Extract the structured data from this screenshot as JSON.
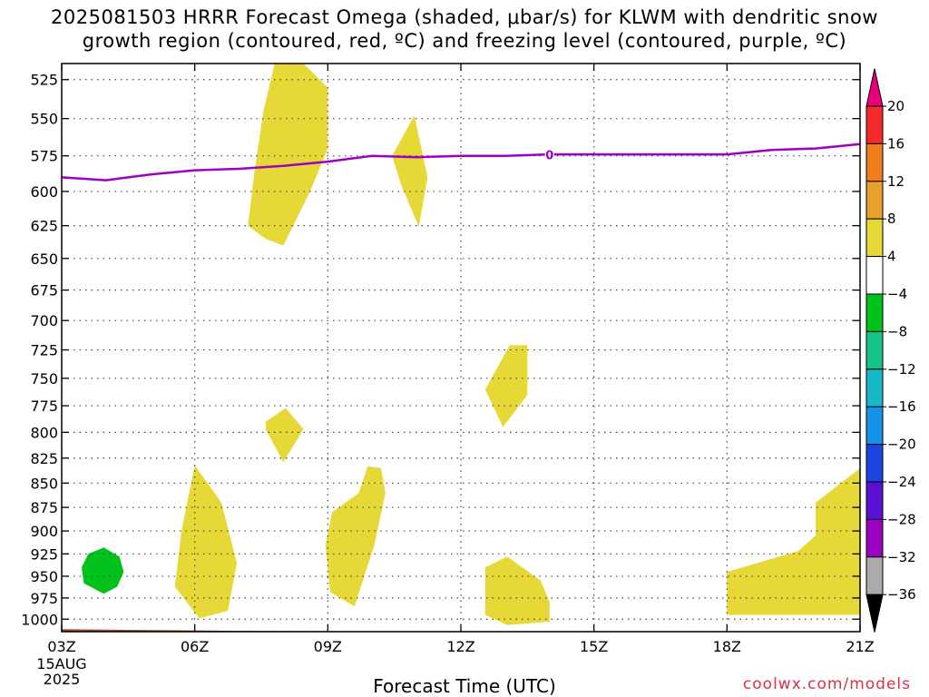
{
  "title_lines": [
    "2025081503 HRRR Forecast Omega (shaded, μbar/s) for KLWM with dendritic snow",
    "growth region (contoured, red, ºC) and freezing level (contoured, purple, ºC)"
  ],
  "xlabel": "Forecast Time (UTC)",
  "credit": "coolwx.com/models",
  "chart_data": {
    "type": "contour",
    "x_ticks": [
      "03Z",
      "06Z",
      "09Z",
      "12Z",
      "15Z",
      "18Z",
      "21Z"
    ],
    "x_start_lines": [
      "15AUG",
      "2025"
    ],
    "x_range_hours": [
      3,
      21
    ],
    "y_ticks": [
      525,
      550,
      575,
      600,
      625,
      650,
      675,
      700,
      725,
      750,
      775,
      800,
      825,
      850,
      875,
      900,
      925,
      950,
      975,
      1000
    ],
    "ylim": [
      1015,
      515
    ],
    "y_scale": "log",
    "grid": true,
    "freezing_level": {
      "color": "#9c00c0",
      "label": "0",
      "label_at": [
        14.0,
        575
      ],
      "points": [
        [
          3.0,
          590
        ],
        [
          4.0,
          592
        ],
        [
          5.0,
          588
        ],
        [
          6.0,
          585
        ],
        [
          7.0,
          584
        ],
        [
          8.0,
          582
        ],
        [
          9.0,
          579
        ],
        [
          10.0,
          575
        ],
        [
          11.0,
          576
        ],
        [
          12.0,
          575
        ],
        [
          13.0,
          575
        ],
        [
          14.0,
          574
        ],
        [
          15.0,
          574
        ],
        [
          16.0,
          574
        ],
        [
          17.0,
          574
        ],
        [
          18.0,
          574
        ],
        [
          19.0,
          571
        ],
        [
          20.0,
          570
        ],
        [
          21.0,
          567
        ]
      ]
    },
    "omega_regions": [
      {
        "bin": "4 to 8",
        "color": "#e6d937",
        "points": [
          [
            7.8,
            515
          ],
          [
            8.45,
            515
          ],
          [
            9.0,
            530
          ],
          [
            9.0,
            570
          ],
          [
            8.6,
            600
          ],
          [
            8.0,
            640
          ],
          [
            7.6,
            635
          ],
          [
            7.2,
            625
          ],
          [
            7.35,
            585
          ],
          [
            7.55,
            545
          ]
        ]
      },
      {
        "bin": "4 to 8",
        "color": "#e6d937",
        "points": [
          [
            10.45,
            575
          ],
          [
            10.95,
            548
          ],
          [
            11.25,
            590
          ],
          [
            11.05,
            626
          ],
          [
            10.65,
            595
          ]
        ]
      },
      {
        "bin": "4 to 8",
        "color": "#e6d937",
        "points": [
          [
            13.1,
            721
          ],
          [
            13.5,
            721
          ],
          [
            13.5,
            765
          ],
          [
            12.95,
            795
          ],
          [
            12.55,
            760
          ]
        ]
      },
      {
        "bin": "4 to 8",
        "color": "#e6d937",
        "points": [
          [
            7.6,
            790
          ],
          [
            8.05,
            777
          ],
          [
            8.45,
            797
          ],
          [
            8.0,
            829
          ],
          [
            7.6,
            797
          ]
        ]
      },
      {
        "bin": "4 to 8",
        "color": "#e6d937",
        "points": [
          [
            6.0,
            832
          ],
          [
            6.6,
            870
          ],
          [
            6.95,
            935
          ],
          [
            6.75,
            990
          ],
          [
            6.1,
            999
          ],
          [
            5.55,
            962
          ],
          [
            5.7,
            900
          ]
        ]
      },
      {
        "bin": "4 to 8",
        "color": "#e6d937",
        "points": [
          [
            9.9,
            833
          ],
          [
            10.2,
            835
          ],
          [
            10.3,
            860
          ],
          [
            10.05,
            915
          ],
          [
            9.6,
            985
          ],
          [
            9.05,
            968
          ],
          [
            8.95,
            915
          ],
          [
            9.1,
            880
          ],
          [
            9.7,
            860
          ]
        ]
      },
      {
        "bin": "4 to 8",
        "color": "#e6d937",
        "points": [
          [
            12.55,
            940
          ],
          [
            13.05,
            928
          ],
          [
            13.8,
            955
          ],
          [
            14.0,
            980
          ],
          [
            14.0,
            1003
          ],
          [
            13.05,
            1007
          ],
          [
            12.55,
            995
          ]
        ]
      },
      {
        "bin": "4 to 8",
        "color": "#e6d937",
        "points": [
          [
            18.0,
            945
          ],
          [
            19.6,
            922
          ],
          [
            20.0,
            905
          ],
          [
            20.0,
            870
          ],
          [
            21.0,
            835
          ],
          [
            21.0,
            995
          ],
          [
            18.0,
            995
          ]
        ]
      },
      {
        "bin": "-8 to -4",
        "color": "#00c21a",
        "points": [
          [
            3.95,
            918
          ],
          [
            4.3,
            928
          ],
          [
            4.4,
            945
          ],
          [
            4.25,
            962
          ],
          [
            3.95,
            970
          ],
          [
            3.5,
            958
          ],
          [
            3.45,
            940
          ],
          [
            3.6,
            925
          ]
        ]
      }
    ],
    "terrain": {
      "color": "#a0502c",
      "top_points": [
        [
          3.0,
          1012
        ],
        [
          7.0,
          1014
        ],
        [
          12.0,
          1015
        ],
        [
          21.0,
          1015
        ]
      ]
    },
    "colorbar": {
      "labels": [
        "20",
        "16",
        "12",
        "8",
        "4",
        "-4",
        "-8",
        "-12",
        "-16",
        "-20",
        "-24",
        "-28",
        "-32",
        "-36"
      ],
      "colors": [
        "#e8007a",
        "#f52a2a",
        "#f07e1c",
        "#e6a22c",
        "#e6d937",
        "#ffffff",
        "#00c21a",
        "#17c288",
        "#16b7c6",
        "#1493e8",
        "#1a45e0",
        "#5a10d2",
        "#9c00c0",
        "#aaaaaa",
        "#000000"
      ]
    }
  }
}
